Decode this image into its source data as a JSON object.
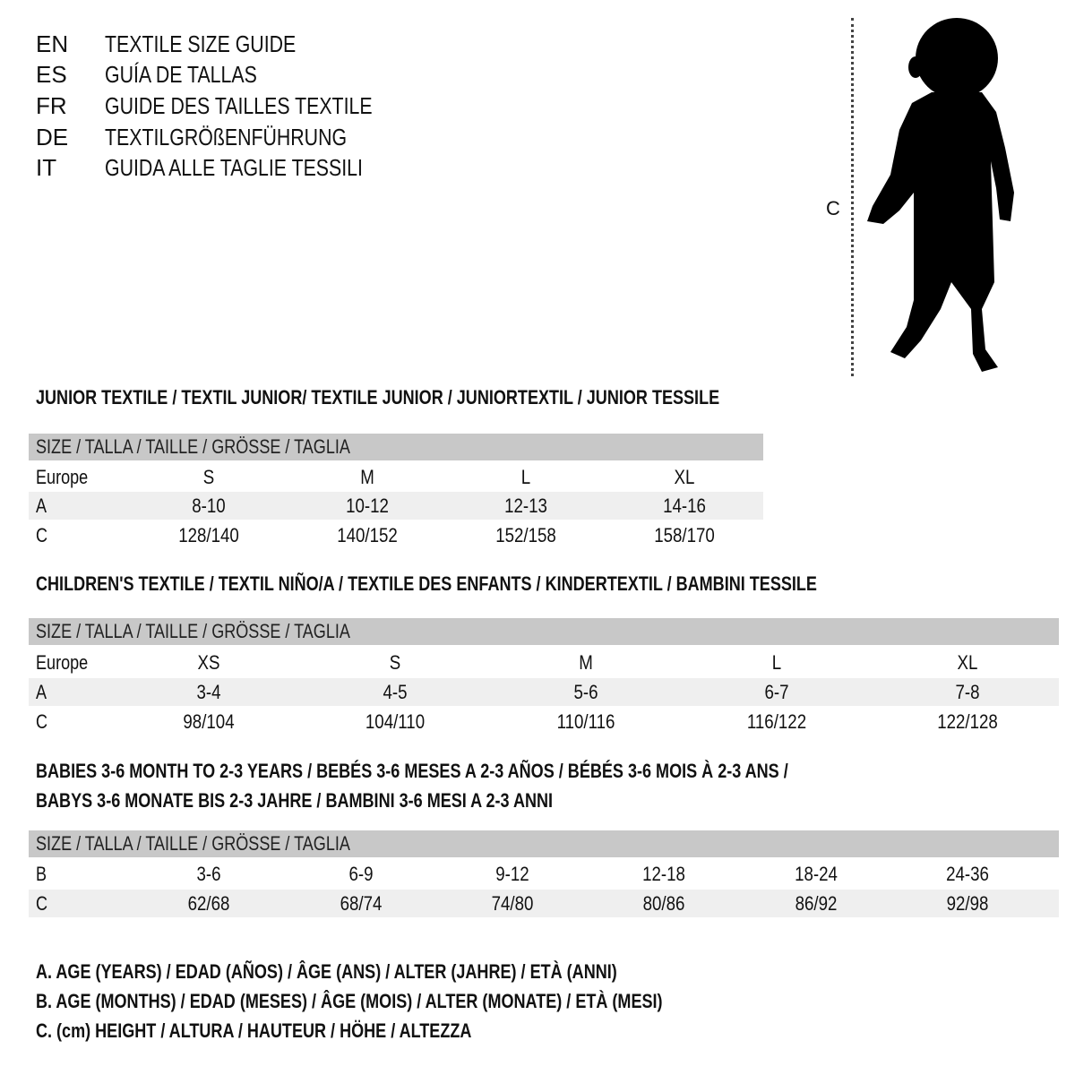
{
  "titles": [
    {
      "lang": "EN",
      "text": "TEXTILE SIZE GUIDE"
    },
    {
      "lang": "ES",
      "text": "GUÍA DE TALLAS"
    },
    {
      "lang": "FR",
      "text": "GUIDE DES TAILLES TEXTILE"
    },
    {
      "lang": "DE",
      "text": "TEXTILGRÖßENFÜHRUNG"
    },
    {
      "lang": "IT",
      "text": "GUIDA ALLE TAGLIE TESSILI"
    }
  ],
  "figure": {
    "height_label": "C"
  },
  "tables": [
    {
      "section_title": [
        "JUNIOR TEXTILE / TEXTIL JUNIOR/ TEXTILE JUNIOR / JUNIORTEXTIL / JUNIOR TESSILE"
      ],
      "header": "SIZE / TALLA / TAILLE / GRÖSSE / TAGLIA",
      "rows": [
        {
          "label": "Europe",
          "values": [
            "S",
            "M",
            "L",
            "XL"
          ]
        },
        {
          "label": "A",
          "values": [
            "8-10",
            "10-12",
            "12-13",
            "14-16"
          ]
        },
        {
          "label": "C",
          "values": [
            "128/140",
            "140/152",
            "152/158",
            "158/170"
          ]
        }
      ]
    },
    {
      "section_title": [
        "CHILDREN'S TEXTILE / TEXTIL NIÑO/A / TEXTILE DES ENFANTS / KINDERTEXTIL / BAMBINI TESSILE"
      ],
      "header": "SIZE / TALLA / TAILLE / GRÖSSE / TAGLIA",
      "rows": [
        {
          "label": "Europe",
          "values": [
            "XS",
            "S",
            "M",
            "L",
            "XL"
          ]
        },
        {
          "label": "A",
          "values": [
            "3-4",
            "4-5",
            "5-6",
            "6-7",
            "7-8"
          ]
        },
        {
          "label": "C",
          "values": [
            "98/104",
            "104/110",
            "110/116",
            "116/122",
            "122/128"
          ]
        }
      ]
    },
    {
      "section_title": [
        "BABIES 3-6 MONTH TO 2-3 YEARS / BEBÉS 3-6 MESES A 2-3 AÑOS / BÉBÉS 3-6 MOIS À 2-3 ANS /",
        "BABYS 3-6 MONATE BIS 2-3 JAHRE / BAMBINI 3-6 MESI A 2-3 ANNI"
      ],
      "header": "SIZE / TALLA / TAILLE / GRÖSSE / TAGLIA",
      "rows": [
        {
          "label": "B",
          "values": [
            "3-6",
            "6-9",
            "9-12",
            "12-18",
            "18-24",
            "24-36"
          ]
        },
        {
          "label": "C",
          "values": [
            "62/68",
            "68/74",
            "74/80",
            "80/86",
            "86/92",
            "92/98"
          ]
        }
      ]
    }
  ],
  "legend": [
    "A. AGE (YEARS) / EDAD (AÑOS) / ÂGE (ANS) / ALTER (JAHRE) / ETÀ (ANNI)",
    "B. AGE (MONTHS) / EDAD (MESES) / ÂGE (MOIS) / ALTER (MONATE) / ETÀ (MESI)",
    "C. (cm) HEIGHT / ALTURA / HAUTEUR / HÖHE / ALTEZZA"
  ],
  "colors": {
    "header_bg": "#c8c8c8",
    "stripe_bg": "#efefef",
    "text": "#111111"
  }
}
